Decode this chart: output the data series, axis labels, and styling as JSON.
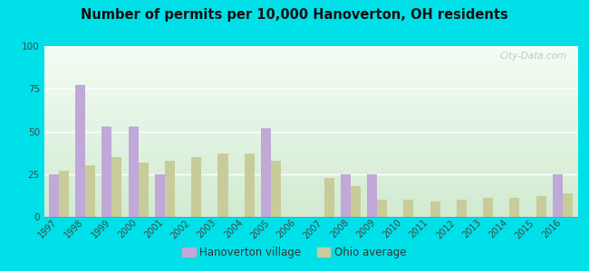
{
  "title": "Number of permits per 10,000 Hanoverton, OH residents",
  "years": [
    1997,
    1998,
    1999,
    2000,
    2001,
    2002,
    2003,
    2004,
    2005,
    2006,
    2007,
    2008,
    2009,
    2010,
    2011,
    2012,
    2013,
    2014,
    2015,
    2016
  ],
  "hanoverton": [
    25,
    77,
    53,
    53,
    25,
    0,
    0,
    0,
    52,
    0,
    0,
    25,
    25,
    0,
    0,
    0,
    0,
    0,
    0,
    25
  ],
  "ohio_avg": [
    27,
    30,
    35,
    32,
    33,
    35,
    37,
    37,
    33,
    0,
    23,
    18,
    10,
    10,
    9,
    10,
    11,
    11,
    12,
    14
  ],
  "hanoverton_color": "#c0a8d8",
  "ohio_color": "#c8cc9a",
  "outer_bg": "#00e0e8",
  "ylim": [
    0,
    100
  ],
  "yticks": [
    0,
    25,
    50,
    75,
    100
  ],
  "legend_hanoverton": "Hanoverton village",
  "legend_ohio": "Ohio average",
  "watermark": "City-Data.com",
  "bar_width": 0.38
}
